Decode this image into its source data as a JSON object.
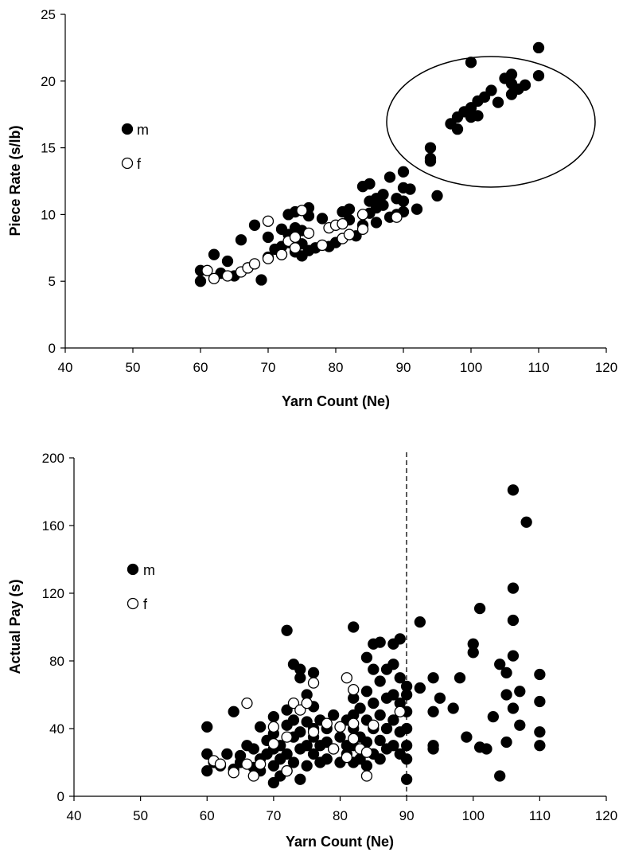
{
  "chart_data": [
    {
      "type": "scatter",
      "title": "",
      "xlabel": "Yarn Count (Ne)",
      "ylabel": "Piece Rate (s/lb)",
      "xlim": [
        40,
        120
      ],
      "ylim": [
        0,
        25
      ],
      "xticks": [
        "40",
        "50",
        "60",
        "70",
        "80",
        "90",
        "100",
        "110",
        "120"
      ],
      "yticks": [
        "0",
        "5",
        "10",
        "15",
        "20",
        "25"
      ],
      "grid": false,
      "legend_position": "left",
      "annotation": "ellipse around high-count points (yarn count ≈ 94–110)",
      "series": [
        {
          "name": "m",
          "marker": "filled-circle",
          "color": "#000000",
          "points": [
            [
              60,
              5.8
            ],
            [
              60,
              5.0
            ],
            [
              62,
              7.0
            ],
            [
              63,
              5.6
            ],
            [
              64,
              6.5
            ],
            [
              65,
              5.4
            ],
            [
              66,
              8.1
            ],
            [
              67,
              6.0
            ],
            [
              68,
              9.2
            ],
            [
              69,
              5.1
            ],
            [
              70,
              6.8
            ],
            [
              70,
              8.3
            ],
            [
              71,
              7.4
            ],
            [
              72,
              7.0
            ],
            [
              72,
              8.9
            ],
            [
              72,
              7.6
            ],
            [
              73,
              8.5
            ],
            [
              73,
              7.9
            ],
            [
              73,
              10.0
            ],
            [
              74,
              9.0
            ],
            [
              74,
              7.2
            ],
            [
              74,
              10.2
            ],
            [
              75,
              7.8
            ],
            [
              75,
              8.8
            ],
            [
              75,
              6.9
            ],
            [
              76,
              10.5
            ],
            [
              76,
              7.3
            ],
            [
              77,
              7.5
            ],
            [
              78,
              9.7
            ],
            [
              79,
              7.6
            ],
            [
              80,
              7.9
            ],
            [
              81,
              10.2
            ],
            [
              82,
              9.6
            ],
            [
              82,
              10.4
            ],
            [
              83,
              8.4
            ],
            [
              84,
              9.2
            ],
            [
              84,
              12.1
            ],
            [
              85,
              10.1
            ],
            [
              85,
              11.0
            ],
            [
              85,
              12.3
            ],
            [
              86,
              10.5
            ],
            [
              86,
              11.2
            ],
            [
              86,
              9.4
            ],
            [
              87,
              10.7
            ],
            [
              87,
              11.5
            ],
            [
              88,
              9.8
            ],
            [
              88,
              12.8
            ],
            [
              89,
              11.2
            ],
            [
              89,
              10.0
            ],
            [
              90,
              12.0
            ],
            [
              90,
              13.2
            ],
            [
              90,
              11.0
            ],
            [
              90,
              10.2
            ],
            [
              91,
              11.9
            ],
            [
              92,
              10.4
            ],
            [
              94,
              15.0
            ],
            [
              94,
              14.2
            ],
            [
              95,
              11.4
            ],
            [
              97,
              16.8
            ],
            [
              98,
              17.3
            ],
            [
              98,
              16.4
            ],
            [
              99,
              17.7
            ],
            [
              100,
              18.0
            ],
            [
              100,
              21.4
            ],
            [
              100,
              17.3
            ],
            [
              101,
              18.5
            ],
            [
              101,
              17.4
            ],
            [
              102,
              18.8
            ],
            [
              103,
              19.3
            ],
            [
              104,
              18.4
            ],
            [
              105,
              20.2
            ],
            [
              106,
              20.5
            ],
            [
              106,
              19.0
            ],
            [
              107,
              19.4
            ],
            [
              108,
              19.7
            ],
            [
              110,
              22.5
            ],
            [
              110,
              20.4
            ],
            [
              106,
              19.8
            ],
            [
              94,
              14.0
            ],
            [
              76,
              9.9
            ]
          ]
        },
        {
          "name": "f",
          "marker": "open-circle",
          "color": "#000000",
          "points": [
            [
              61,
              5.8
            ],
            [
              62,
              5.2
            ],
            [
              64,
              5.4
            ],
            [
              66,
              5.7
            ],
            [
              67,
              6.0
            ],
            [
              68,
              6.3
            ],
            [
              70,
              6.7
            ],
            [
              70,
              9.5
            ],
            [
              72,
              7.0
            ],
            [
              73,
              8.0
            ],
            [
              74,
              7.5
            ],
            [
              74,
              8.3
            ],
            [
              75,
              10.3
            ],
            [
              76,
              8.6
            ],
            [
              78,
              7.7
            ],
            [
              79,
              9.0
            ],
            [
              80,
              9.2
            ],
            [
              81,
              8.2
            ],
            [
              81,
              9.3
            ],
            [
              82,
              8.5
            ],
            [
              84,
              8.9
            ],
            [
              84,
              10.0
            ],
            [
              89,
              9.8
            ]
          ]
        }
      ]
    },
    {
      "type": "scatter",
      "title": "",
      "xlabel": "Yarn Count (Ne)",
      "ylabel": "Actual Pay (s)",
      "xlim": [
        40,
        120
      ],
      "ylim": [
        0,
        200
      ],
      "xticks": [
        "40",
        "50",
        "60",
        "70",
        "80",
        "90",
        "100",
        "110",
        "120"
      ],
      "yticks": [
        "0",
        "40",
        "80",
        "120",
        "160",
        "200"
      ],
      "grid": false,
      "legend_position": "left",
      "annotation": "dashed vertical line at yarn count 90",
      "reference_line_x": 90,
      "series": [
        {
          "name": "m",
          "marker": "filled-circle",
          "color": "#000000",
          "points": [
            [
              60,
              41
            ],
            [
              60,
              25
            ],
            [
              60,
              15
            ],
            [
              61,
              20
            ],
            [
              62,
              18
            ],
            [
              63,
              25
            ],
            [
              64,
              50
            ],
            [
              64,
              16
            ],
            [
              65,
              24
            ],
            [
              65,
              20
            ],
            [
              66,
              30
            ],
            [
              67,
              28
            ],
            [
              67,
              17
            ],
            [
              68,
              41
            ],
            [
              68,
              22
            ],
            [
              68,
              15
            ],
            [
              69,
              33
            ],
            [
              69,
              25
            ],
            [
              70,
              47
            ],
            [
              70,
              37
            ],
            [
              70,
              28
            ],
            [
              70,
              18
            ],
            [
              70,
              8
            ],
            [
              71,
              30
            ],
            [
              71,
              22
            ],
            [
              71,
              12
            ],
            [
              72,
              98
            ],
            [
              72,
              51
            ],
            [
              72,
              42
            ],
            [
              72,
              25
            ],
            [
              72,
              15
            ],
            [
              73,
              78
            ],
            [
              73,
              45
            ],
            [
              73,
              35
            ],
            [
              73,
              20
            ],
            [
              74,
              70
            ],
            [
              74,
              75
            ],
            [
              74,
              38
            ],
            [
              74,
              28
            ],
            [
              74,
              10
            ],
            [
              75,
              60
            ],
            [
              75,
              44
            ],
            [
              75,
              30
            ],
            [
              75,
              18
            ],
            [
              76,
              73
            ],
            [
              76,
              53
            ],
            [
              76,
              40
            ],
            [
              76,
              35
            ],
            [
              76,
              25
            ],
            [
              77,
              45
            ],
            [
              77,
              30
            ],
            [
              77,
              20
            ],
            [
              78,
              40
            ],
            [
              78,
              32
            ],
            [
              78,
              22
            ],
            [
              79,
              48
            ],
            [
              79,
              28
            ],
            [
              80,
              41
            ],
            [
              80,
              35
            ],
            [
              80,
              20
            ],
            [
              81,
              30
            ],
            [
              81,
              45
            ],
            [
              81,
              25
            ],
            [
              82,
              100
            ],
            [
              82,
              58
            ],
            [
              82,
              48
            ],
            [
              82,
              40
            ],
            [
              82,
              30
            ],
            [
              82,
              20
            ],
            [
              83,
              52
            ],
            [
              83,
              35
            ],
            [
              83,
              22
            ],
            [
              84,
              82
            ],
            [
              84,
              62
            ],
            [
              84,
              45
            ],
            [
              84,
              32
            ],
            [
              84,
              18
            ],
            [
              85,
              90
            ],
            [
              85,
              75
            ],
            [
              85,
              55
            ],
            [
              85,
              40
            ],
            [
              85,
              25
            ],
            [
              86,
              91
            ],
            [
              86,
              68
            ],
            [
              86,
              48
            ],
            [
              86,
              33
            ],
            [
              86,
              22
            ],
            [
              87,
              75
            ],
            [
              87,
              58
            ],
            [
              87,
              40
            ],
            [
              87,
              28
            ],
            [
              88,
              90
            ],
            [
              88,
              78
            ],
            [
              88,
              60
            ],
            [
              88,
              45
            ],
            [
              88,
              30
            ],
            [
              89,
              93
            ],
            [
              89,
              70
            ],
            [
              89,
              55
            ],
            [
              89,
              38
            ],
            [
              89,
              25
            ],
            [
              90,
              65
            ],
            [
              90,
              60
            ],
            [
              90,
              50
            ],
            [
              90,
              40
            ],
            [
              90,
              30
            ],
            [
              90,
              22
            ],
            [
              90,
              10
            ],
            [
              92,
              103
            ],
            [
              92,
              64
            ],
            [
              94,
              70
            ],
            [
              94,
              50
            ],
            [
              94,
              30
            ],
            [
              94,
              28
            ],
            [
              95,
              58
            ],
            [
              97,
              52
            ],
            [
              98,
              70
            ],
            [
              99,
              35
            ],
            [
              100,
              90
            ],
            [
              100,
              85
            ],
            [
              101,
              111
            ],
            [
              101,
              29
            ],
            [
              102,
              28
            ],
            [
              103,
              47
            ],
            [
              104,
              78
            ],
            [
              104,
              12
            ],
            [
              105,
              73
            ],
            [
              105,
              60
            ],
            [
              105,
              32
            ],
            [
              106,
              181
            ],
            [
              106,
              123
            ],
            [
              106,
              104
            ],
            [
              106,
              83
            ],
            [
              106,
              52
            ],
            [
              107,
              62
            ],
            [
              107,
              42
            ],
            [
              108,
              162
            ],
            [
              110,
              72
            ],
            [
              110,
              56
            ],
            [
              110,
              38
            ],
            [
              110,
              30
            ]
          ]
        },
        {
          "name": "f",
          "marker": "open-circle",
          "color": "#000000",
          "points": [
            [
              61,
              21
            ],
            [
              62,
              19
            ],
            [
              64,
              14
            ],
            [
              66,
              55
            ],
            [
              66,
              19
            ],
            [
              67,
              12
            ],
            [
              68,
              19
            ],
            [
              70,
              41
            ],
            [
              70,
              31
            ],
            [
              72,
              35
            ],
            [
              72,
              15
            ],
            [
              73,
              55
            ],
            [
              74,
              51
            ],
            [
              75,
              55
            ],
            [
              76,
              67
            ],
            [
              76,
              38
            ],
            [
              78,
              43
            ],
            [
              79,
              28
            ],
            [
              80,
              41
            ],
            [
              81,
              70
            ],
            [
              81,
              23
            ],
            [
              82,
              63
            ],
            [
              82,
              43
            ],
            [
              82,
              34
            ],
            [
              83,
              28
            ],
            [
              84,
              26
            ],
            [
              84,
              12
            ],
            [
              85,
              42
            ],
            [
              89,
              50
            ]
          ]
        }
      ]
    }
  ],
  "legend": {
    "m": "m",
    "f": "f"
  }
}
